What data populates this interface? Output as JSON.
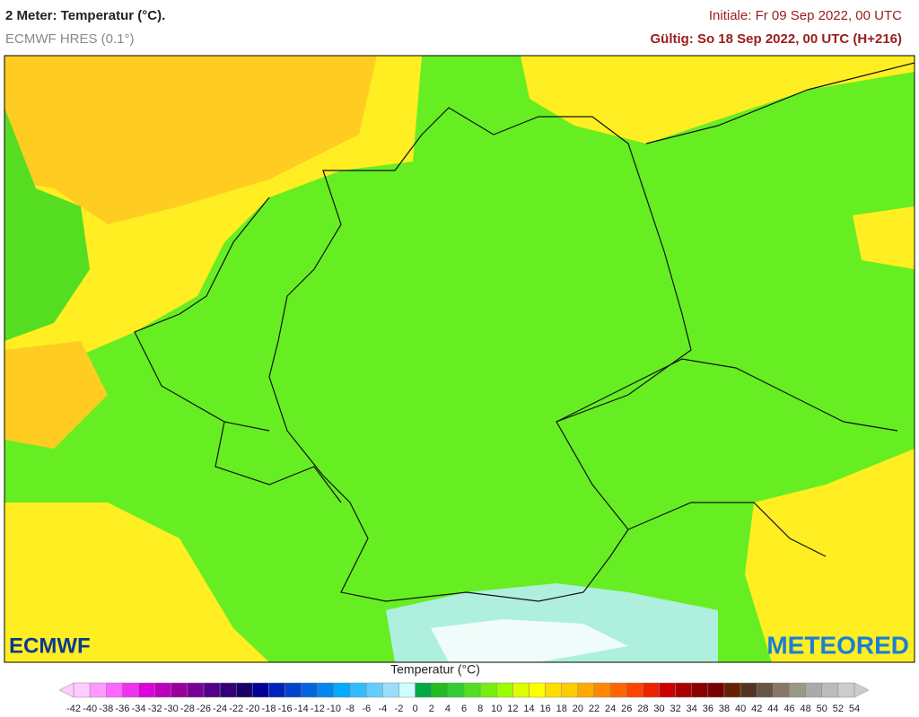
{
  "header": {
    "title": "2 Meter: Temperatur (°C).",
    "subtitle": "ECMWF HRES (0.1°)",
    "initial": "Initiale: Fr 09 Sep 2022, 00 UTC",
    "valid": "Gültig: So 18 Sep 2022, 00 UTC (H+216)"
  },
  "logos": {
    "left": "ECMWF",
    "right": "METEORED"
  },
  "legend": {
    "title": "Temperatur (°C)",
    "ticks": [
      -42,
      -40,
      -38,
      -36,
      -34,
      -32,
      -30,
      -28,
      -26,
      -24,
      -22,
      -20,
      -18,
      -16,
      -14,
      -12,
      -10,
      -8,
      -6,
      -4,
      -2,
      0,
      2,
      4,
      6,
      8,
      10,
      12,
      14,
      16,
      18,
      20,
      22,
      24,
      26,
      28,
      30,
      32,
      34,
      36,
      38,
      40,
      42,
      44,
      46,
      48,
      50,
      52,
      54
    ],
    "colors": [
      "#ffccff",
      "#ff99ff",
      "#ff66ff",
      "#ee33ee",
      "#dd00dd",
      "#bb00bb",
      "#990099",
      "#770099",
      "#550088",
      "#330077",
      "#1a0066",
      "#000099",
      "#0022bb",
      "#0044cc",
      "#0066dd",
      "#0088ee",
      "#00aaff",
      "#33bbff",
      "#66ccff",
      "#99ddff",
      "#ccffff",
      "#00aa44",
      "#22bb22",
      "#33cc33",
      "#55dd22",
      "#77ee11",
      "#99ff00",
      "#ddff00",
      "#ffff00",
      "#ffdd00",
      "#ffcc00",
      "#ffaa00",
      "#ff8800",
      "#ff6600",
      "#ff4400",
      "#ee2200",
      "#cc0000",
      "#aa0000",
      "#880000",
      "#770000",
      "#662200",
      "#553322",
      "#665544",
      "#887766",
      "#999988",
      "#aaaaaa",
      "#bbbbbb",
      "#cccccc"
    ]
  }
}
